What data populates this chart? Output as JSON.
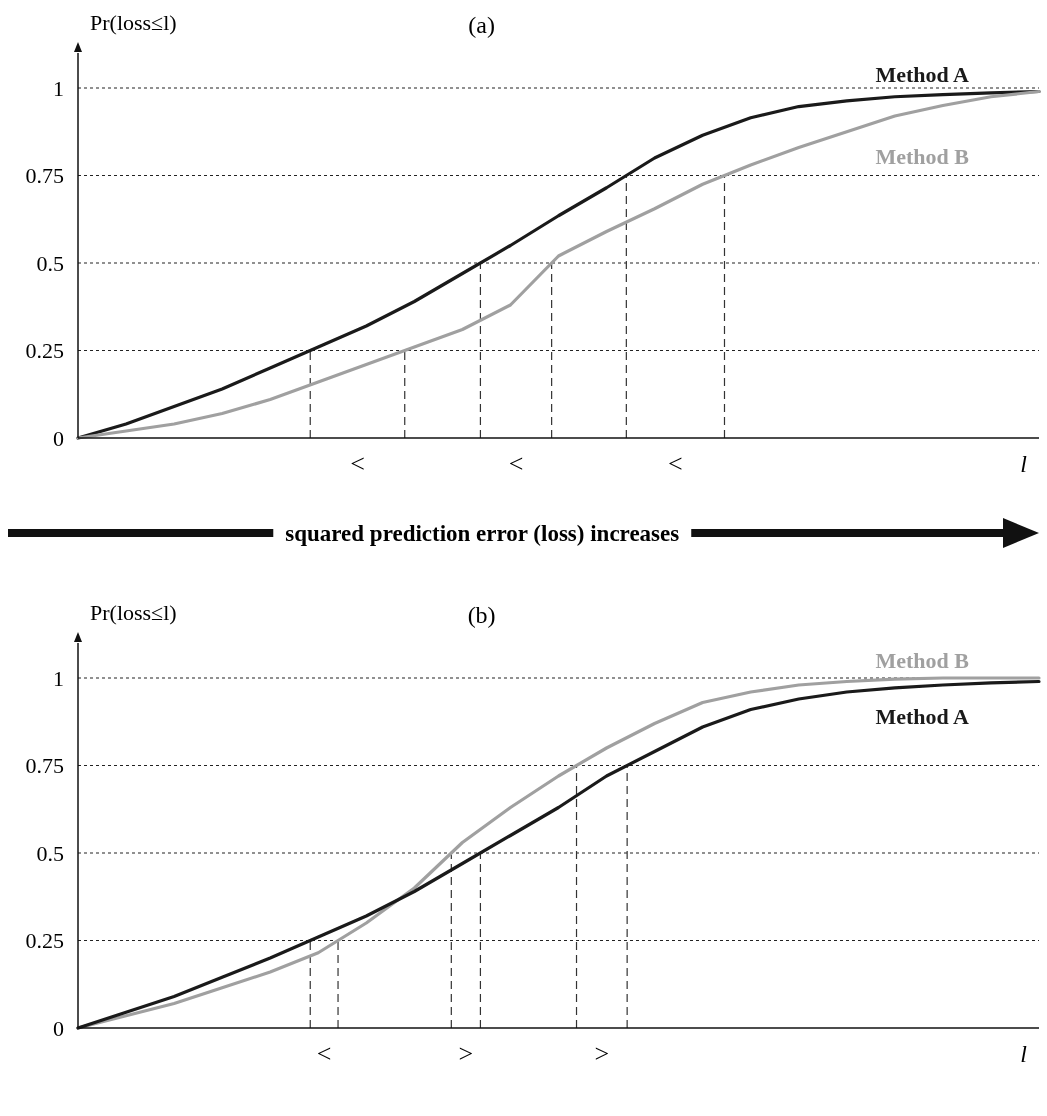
{
  "chart_data": [
    {
      "type": "line",
      "title": "(a)",
      "ylabel": "Pr(loss≤l)",
      "xlabel": "l",
      "categories": [
        null,
        null,
        null,
        null,
        null,
        null,
        null,
        null,
        null,
        null,
        null,
        null,
        null,
        null,
        null,
        null,
        null,
        null,
        null,
        null,
        null
      ],
      "ylim": [
        0,
        1.1
      ],
      "yticks": [
        0,
        0.25,
        0.5,
        0.75,
        1
      ],
      "grid": "y",
      "tick_labels": "y",
      "series": [
        {
          "name": "Method A",
          "color": "#1a1a1a",
          "values": [
            0,
            0.04,
            0.09,
            0.14,
            0.2,
            0.26,
            0.32,
            0.39,
            0.47,
            0.55,
            0.635,
            0.715,
            0.8,
            0.865,
            0.915,
            0.947,
            0.963,
            0.975,
            0.981,
            0.986,
            0.99
          ]
        },
        {
          "name": "Method B",
          "color": "#a0a0a0",
          "values": [
            0,
            0.02,
            0.04,
            0.07,
            0.11,
            0.16,
            0.21,
            0.26,
            0.31,
            0.38,
            0.52,
            0.59,
            0.655,
            0.725,
            0.78,
            0.83,
            0.875,
            0.92,
            0.95,
            0.975,
            0.99
          ]
        }
      ],
      "annotations": [
        "<",
        "<",
        "<"
      ]
    },
    {
      "type": "other",
      "title": "squared prediction error (loss) increases"
    },
    {
      "type": "line",
      "title": "(b)",
      "ylabel": "Pr(loss≤l)",
      "xlabel": "l",
      "categories": [
        null,
        null,
        null,
        null,
        null,
        null,
        null,
        null,
        null,
        null,
        null,
        null,
        null,
        null,
        null,
        null,
        null,
        null,
        null,
        null,
        null
      ],
      "ylim": [
        0,
        1.1
      ],
      "yticks": [
        0,
        0.25,
        0.5,
        0.75,
        1
      ],
      "grid": "y",
      "tick_labels": "y",
      "series": [
        {
          "name": "Method B",
          "color": "#a0a0a0",
          "values": [
            0,
            0.035,
            0.07,
            0.115,
            0.16,
            0.215,
            0.3,
            0.4,
            0.53,
            0.63,
            0.72,
            0.8,
            0.87,
            0.93,
            0.96,
            0.98,
            0.99,
            0.997,
            1,
            1,
            1
          ]
        },
        {
          "name": "Method A",
          "color": "#1a1a1a",
          "values": [
            0,
            0.045,
            0.09,
            0.145,
            0.2,
            0.26,
            0.32,
            0.39,
            0.47,
            0.55,
            0.63,
            0.72,
            0.79,
            0.86,
            0.91,
            0.94,
            0.96,
            0.972,
            0.98,
            0.986,
            0.99
          ]
        }
      ],
      "annotations": [
        "<",
        ">",
        ">"
      ]
    }
  ]
}
